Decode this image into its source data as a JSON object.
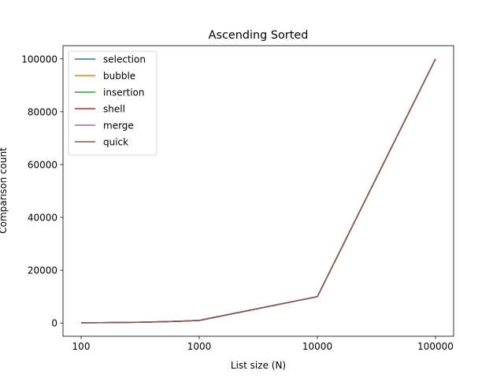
{
  "chart_data": {
    "type": "line",
    "title": "Ascending Sorted",
    "xlabel": "List size (N)",
    "ylabel": "Comparison count",
    "x": [
      100,
      150,
      250,
      300,
      500,
      700,
      1000,
      10000,
      100000
    ],
    "x_tick_labels": [
      "100",
      "1000",
      "10000",
      "100000"
    ],
    "y_ticks": [
      0,
      20000,
      40000,
      60000,
      80000,
      100000
    ],
    "y_tick_labels": [
      "0",
      "20000",
      "40000",
      "60000",
      "80000",
      "100000"
    ],
    "ylim": [
      -5000,
      105000
    ],
    "grid": false,
    "legend_position": "top-left",
    "series": [
      {
        "name": "selection",
        "color": "#1f77b4",
        "values": [
          99,
          149,
          249,
          299,
          499,
          699,
          999,
          9999,
          99999
        ]
      },
      {
        "name": "bubble",
        "color": "#ff7f0e",
        "values": [
          99,
          149,
          249,
          299,
          499,
          699,
          999,
          9999,
          99999
        ]
      },
      {
        "name": "insertion",
        "color": "#2ca02c",
        "values": [
          99,
          149,
          249,
          299,
          499,
          699,
          999,
          9999,
          99999
        ]
      },
      {
        "name": "shell",
        "color": "#d62728",
        "values": [
          99,
          149,
          249,
          299,
          499,
          699,
          999,
          9999,
          99999
        ]
      },
      {
        "name": "merge",
        "color": "#9467bd",
        "values": [
          99,
          149,
          249,
          299,
          499,
          699,
          999,
          9999,
          99999
        ]
      },
      {
        "name": "quick",
        "color": "#8c564b",
        "values": [
          99,
          149,
          249,
          299,
          499,
          699,
          999,
          9999,
          99999
        ]
      }
    ]
  }
}
